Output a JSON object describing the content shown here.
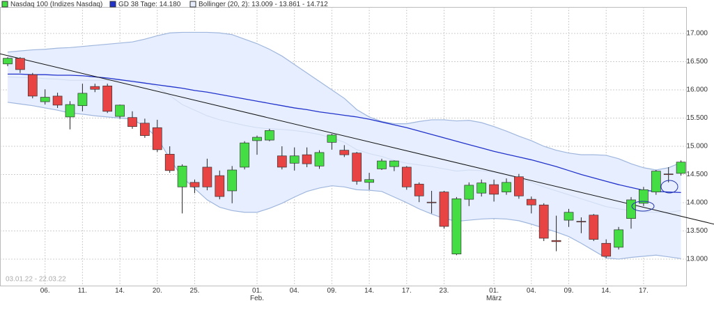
{
  "chart_data": {
    "type": "candlestick",
    "name": "Nasdaq 100 (Indizes Nasdaq)",
    "range_label": "03.01.22 - 22.03.22",
    "up_color": "#44dd44",
    "down_color": "#e84444",
    "categories": [
      null,
      null,
      null,
      "06.",
      null,
      null,
      "11.",
      null,
      null,
      "14.",
      null,
      null,
      "20.",
      null,
      null,
      "25.",
      null,
      null,
      null,
      null,
      "01.\nFeb.",
      null,
      null,
      "04.",
      null,
      null,
      "09.",
      null,
      null,
      "14.",
      null,
      null,
      "17.",
      null,
      null,
      "23.",
      null,
      null,
      null,
      "01.\nMärz",
      null,
      null,
      "04.",
      null,
      null,
      "09.",
      null,
      null,
      "14.",
      null,
      null,
      "17.",
      null,
      null,
      null
    ],
    "open": [
      16.46,
      16.56,
      16.27,
      15.79,
      15.89,
      15.52,
      15.72,
      16.06,
      16.07,
      15.53,
      15.51,
      15.41,
      15.33,
      14.86,
      14.28,
      14.36,
      14.63,
      14.48,
      14.21,
      14.63,
      15.1,
      15.11,
      14.83,
      14.7,
      14.85,
      14.65,
      15.07,
      14.93,
      14.88,
      14.36,
      14.6,
      14.64,
      14.63,
      14.33,
      14.01,
      14.19,
      13.09,
      14.06,
      14.17,
      14.32,
      14.19,
      14.46,
      14.06,
      13.96,
      13.33,
      13.69,
      13.67,
      13.78,
      13.28,
      13.21,
      13.72,
      13.99,
      14.19,
      14.51,
      14.52
    ],
    "high": [
      16.58,
      16.58,
      16.3,
      16.01,
      15.95,
      15.8,
      16.11,
      16.11,
      16.11,
      15.74,
      15.62,
      15.49,
      15.47,
      15.0,
      14.68,
      14.41,
      14.78,
      14.57,
      14.65,
      15.09,
      15.19,
      15.31,
      15.0,
      14.98,
      14.98,
      14.93,
      15.22,
      15.02,
      14.9,
      14.53,
      14.78,
      14.75,
      14.65,
      14.36,
      14.21,
      14.21,
      14.1,
      14.36,
      14.41,
      14.41,
      14.43,
      14.51,
      14.11,
      13.99,
      13.77,
      13.89,
      13.74,
      13.8,
      13.35,
      13.57,
      14.1,
      14.28,
      14.58,
      14.63,
      14.75
    ],
    "low": [
      16.42,
      16.3,
      15.85,
      15.74,
      15.68,
      15.3,
      15.62,
      15.96,
      15.59,
      15.49,
      15.31,
      15.15,
      14.9,
      14.53,
      13.81,
      14.17,
      14.22,
      14.06,
      13.99,
      14.59,
      14.85,
      15.09,
      14.59,
      14.57,
      14.63,
      14.6,
      14.94,
      14.81,
      14.32,
      14.23,
      14.58,
      14.56,
      14.23,
      14.01,
      13.81,
      13.54,
      13.07,
      13.94,
      14.11,
      14.02,
      14.14,
      14.07,
      13.81,
      13.32,
      13.14,
      13.57,
      13.46,
      13.32,
      13.02,
      13.17,
      13.54,
      13.94,
      14.14,
      14.36,
      14.48
    ],
    "close": [
      16.56,
      16.36,
      15.89,
      15.87,
      15.73,
      15.74,
      15.94,
      16.01,
      15.62,
      15.73,
      15.35,
      15.19,
      14.94,
      14.57,
      14.65,
      14.28,
      14.28,
      14.11,
      14.58,
      15.06,
      15.16,
      15.28,
      14.63,
      14.83,
      14.69,
      14.89,
      15.2,
      14.85,
      14.38,
      14.41,
      14.74,
      14.74,
      14.28,
      14.12,
      14.0,
      13.58,
      14.07,
      14.31,
      14.35,
      14.15,
      14.36,
      14.12,
      13.96,
      13.37,
      13.31,
      13.83,
      13.66,
      13.35,
      13.05,
      13.52,
      14.05,
      14.23,
      14.56,
      14.5,
      14.72
    ],
    "series": [
      {
        "name": "GD 38 Tage: 14.180",
        "color": "#2233cc",
        "values": [
          16.28,
          16.28,
          16.27,
          16.27,
          16.26,
          16.26,
          16.25,
          16.23,
          16.21,
          16.18,
          16.15,
          16.12,
          16.09,
          16.06,
          16.03,
          15.99,
          15.96,
          15.92,
          15.88,
          15.84,
          15.8,
          15.76,
          15.72,
          15.68,
          15.65,
          15.61,
          15.58,
          15.55,
          15.52,
          15.48,
          15.43,
          15.38,
          15.33,
          15.27,
          15.21,
          15.15,
          15.09,
          15.03,
          14.97,
          14.91,
          14.86,
          14.81,
          14.76,
          14.7,
          14.64,
          14.57,
          14.5,
          14.44,
          14.38,
          14.32,
          14.27,
          14.22,
          14.2,
          14.19,
          14.18
        ]
      }
    ],
    "bollinger": {
      "name": "Bollinger (20, 2): 13.009 - 13.861 - 14.712",
      "color": "#9fb6dd",
      "fill": "#e6eeff",
      "upper": [
        16.67,
        16.69,
        16.71,
        16.72,
        16.74,
        16.75,
        16.77,
        16.79,
        16.81,
        16.83,
        16.85,
        16.9,
        16.96,
        17.01,
        17.02,
        17.02,
        17.02,
        17.01,
        16.98,
        16.9,
        16.82,
        16.72,
        16.6,
        16.45,
        16.3,
        16.15,
        16.0,
        15.85,
        15.65,
        15.52,
        15.44,
        15.4,
        15.4,
        15.44,
        15.47,
        15.47,
        15.45,
        15.46,
        15.42,
        15.35,
        15.27,
        15.18,
        15.1,
        15.0,
        14.93,
        14.88,
        14.85,
        14.85,
        14.84,
        14.78,
        14.69,
        14.62,
        14.58,
        14.62,
        14.712
      ],
      "middle": [
        16.23,
        16.22,
        16.22,
        16.2,
        16.19,
        16.17,
        16.17,
        16.17,
        16.17,
        16.17,
        16.17,
        16.13,
        16.06,
        15.9,
        15.74,
        15.64,
        15.54,
        15.47,
        15.42,
        15.37,
        15.33,
        15.31,
        15.3,
        15.28,
        15.25,
        15.21,
        15.15,
        15.07,
        14.94,
        14.87,
        14.82,
        14.75,
        14.7,
        14.67,
        14.64,
        14.6,
        14.56,
        14.58,
        14.57,
        14.54,
        14.49,
        14.43,
        14.36,
        14.28,
        14.21,
        14.14,
        14.07,
        14.0,
        13.93,
        13.89,
        13.86,
        13.84,
        13.83,
        13.83,
        13.861
      ],
      "lower": [
        15.78,
        15.75,
        15.72,
        15.68,
        15.64,
        15.59,
        15.57,
        15.54,
        15.52,
        15.5,
        15.48,
        15.35,
        15.15,
        14.78,
        14.45,
        14.25,
        14.05,
        13.92,
        13.86,
        13.83,
        13.83,
        13.9,
        13.99,
        14.1,
        14.2,
        14.26,
        14.3,
        14.28,
        14.23,
        14.22,
        14.2,
        14.1,
        14.0,
        13.89,
        13.8,
        13.72,
        13.67,
        13.69,
        13.71,
        13.72,
        13.71,
        13.68,
        13.62,
        13.55,
        13.48,
        13.4,
        13.28,
        13.15,
        13.02,
        13.0,
        13.03,
        13.05,
        13.07,
        13.04,
        13.009
      ]
    },
    "trendline": {
      "x": [
        -0.61,
        56.65
      ],
      "values": [
        16.64,
        13.62
      ],
      "color": "#111111"
    },
    "ylim": [
      12.53,
      17.47
    ],
    "yticks": [
      {
        "value": 13,
        "label": "13.000"
      },
      {
        "value": 13.5,
        "label": "13.500"
      },
      {
        "value": 14,
        "label": "14.000"
      },
      {
        "value": 14.5,
        "label": "14.500"
      },
      {
        "value": 15,
        "label": "15.000"
      },
      {
        "value": 15.5,
        "label": "15.500"
      },
      {
        "value": 16,
        "label": "16.000"
      },
      {
        "value": 16.5,
        "label": "16.500"
      },
      {
        "value": 17,
        "label": "17.000"
      }
    ],
    "grid": true
  }
}
